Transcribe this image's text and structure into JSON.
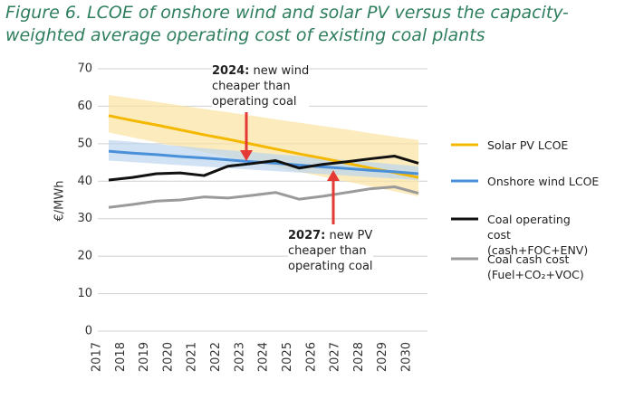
{
  "chart_data": {
    "type": "line",
    "title": "Figure 6. LCOE of onshore wind and solar PV versus the capacity-weighted average operating cost of existing coal plants",
    "ylabel": "€/MWh",
    "categories": [
      "2017",
      "2018",
      "2019",
      "2020",
      "2021",
      "2022",
      "2023",
      "2024",
      "2025",
      "2026",
      "2027",
      "2028",
      "2029",
      "2030"
    ],
    "ylim": [
      0,
      70
    ],
    "yticks": [
      0,
      10,
      20,
      30,
      40,
      50,
      60,
      70
    ],
    "grid": true,
    "series": [
      {
        "name": "Solar PV LCOE",
        "color": "#f5b800",
        "band_color": "#fbe2a0",
        "values": [
          57.5,
          56.2,
          55,
          53.7,
          52.4,
          51.2,
          49.9,
          48.6,
          47.3,
          46.1,
          44.8,
          43.5,
          42.3,
          41
        ],
        "band_upper": [
          63,
          62.1,
          61.2,
          60.2,
          59.3,
          58.4,
          57.5,
          56.5,
          55.6,
          54.7,
          53.8,
          52.8,
          51.9,
          51
        ],
        "band_lower": [
          53,
          51.7,
          50.4,
          49.1,
          47.8,
          46.5,
          45.2,
          43.8,
          42.5,
          41.2,
          39.9,
          38.6,
          37.3,
          36
        ]
      },
      {
        "name": "Onshore wind LCOE",
        "color": "#4a90d9",
        "band_color": "#bcd6ee",
        "values": [
          48,
          47.5,
          47.1,
          46.6,
          46.2,
          45.7,
          45.2,
          44.8,
          44.3,
          43.8,
          43.4,
          42.9,
          42.5,
          42
        ],
        "band_upper": [
          51,
          50.5,
          49.9,
          49.4,
          48.8,
          48.3,
          47.8,
          47.2,
          46.7,
          46.2,
          45.6,
          45.1,
          44.5,
          44
        ],
        "band_lower": [
          45.5,
          45.1,
          44.7,
          44.3,
          43.9,
          43.5,
          43.1,
          42.7,
          42.3,
          41.9,
          41.5,
          41.1,
          40.7,
          40.3
        ]
      },
      {
        "name": "Coal operating cost (cash+FOC+ENV)",
        "color": "#111111",
        "values": [
          40.3,
          41,
          42,
          42.2,
          41.5,
          44,
          44.7,
          45.5,
          43.5,
          44.5,
          45.2,
          46,
          46.7,
          44.8
        ]
      },
      {
        "name": "Coal cash cost (Fuel+CO₂+VOC)",
        "color": "#9a9a9a",
        "values": [
          33,
          33.8,
          34.7,
          35,
          35.8,
          35.5,
          36.2,
          37,
          35.2,
          36,
          37,
          38,
          38.5,
          36.8
        ]
      }
    ],
    "annotations": [
      {
        "bold": "2024:",
        "lines": [
          "new wind",
          "cheaper than",
          "operating coal"
        ]
      },
      {
        "bold": "2027:",
        "lines": [
          "new PV",
          "cheaper than",
          "operating coal"
        ]
      }
    ]
  }
}
